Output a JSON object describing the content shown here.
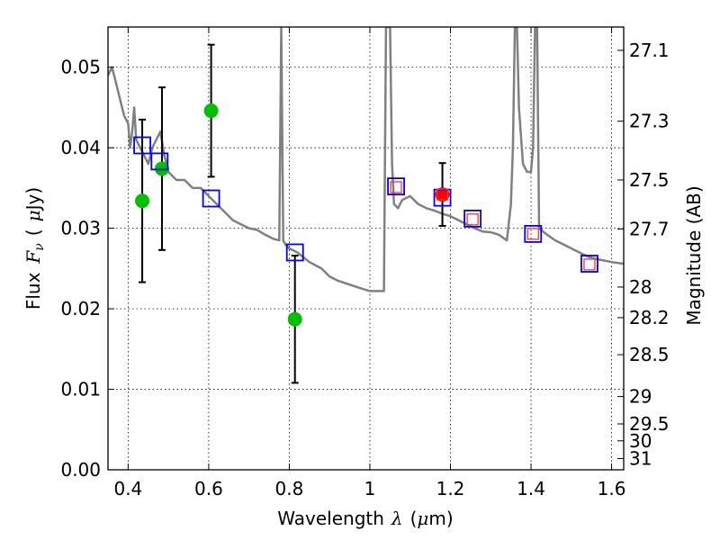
{
  "chart_data": {
    "type": "scatter",
    "xlabel_prefix": "Wavelength",
    "xlabel_symbol": "λ",
    "xlabel_unit_open": "(",
    "xlabel_unit_mu": "μ",
    "xlabel_unit_rest": "m)",
    "ylabel_prefix": "Flux",
    "ylabel_symbol": "F",
    "ylabel_sub": "ν",
    "ylabel_unit_open": "(",
    "ylabel_unit_mu": "μ",
    "ylabel_unit_rest": "Jy)",
    "y2label": "Magnitude (AB)",
    "xlim": [
      0.35,
      1.63
    ],
    "ylim": [
      0.0,
      0.055
    ],
    "grid": true,
    "x_ticks": [
      0.4,
      0.6,
      0.8,
      1.0,
      1.2,
      1.4,
      1.6
    ],
    "x_tick_labels": [
      "0.4",
      "0.6",
      "0.8",
      "1",
      "1.2",
      "1.4",
      "1.6"
    ],
    "y_ticks": [
      0.0,
      0.01,
      0.02,
      0.03,
      0.04,
      0.05
    ],
    "y_tick_labels": [
      "0.00",
      "0.01",
      "0.02",
      "0.03",
      "0.04",
      "0.05"
    ],
    "y2_ticks": [
      {
        "label": "27.1",
        "flux": 0.0521
      },
      {
        "label": "27.3",
        "flux": 0.0433
      },
      {
        "label": "27.5",
        "flux": 0.036
      },
      {
        "label": "27.7",
        "flux": 0.0299
      },
      {
        "label": "28",
        "flux": 0.0227
      },
      {
        "label": "28.2",
        "flux": 0.0189
      },
      {
        "label": "28.5",
        "flux": 0.0143
      },
      {
        "label": "29",
        "flux": 0.0091
      },
      {
        "label": "29.5",
        "flux": 0.0057
      },
      {
        "label": "30",
        "flux": 0.0036
      },
      {
        "label": "31",
        "flux": 0.0014
      }
    ],
    "template_spectrum": {
      "name": "model SED",
      "color": "#808080",
      "x": [
        0.35,
        0.36,
        0.37,
        0.38,
        0.39,
        0.4,
        0.405,
        0.41,
        0.415,
        0.42,
        0.43,
        0.44,
        0.45,
        0.46,
        0.47,
        0.48,
        0.49,
        0.5,
        0.52,
        0.54,
        0.56,
        0.58,
        0.6,
        0.62,
        0.64,
        0.66,
        0.68,
        0.7,
        0.72,
        0.74,
        0.76,
        0.775,
        0.78,
        0.785,
        0.79,
        0.8,
        0.82,
        0.85,
        0.88,
        0.9,
        0.92,
        0.95,
        0.98,
        1.0,
        1.02,
        1.035,
        1.04,
        1.045,
        1.05,
        1.055,
        1.06,
        1.07,
        1.08,
        1.1,
        1.12,
        1.14,
        1.16,
        1.18,
        1.2,
        1.22,
        1.24,
        1.26,
        1.28,
        1.3,
        1.32,
        1.34,
        1.35,
        1.355,
        1.36,
        1.365,
        1.37,
        1.38,
        1.39,
        1.4,
        1.405,
        1.41,
        1.415,
        1.42,
        1.44,
        1.46,
        1.48,
        1.5,
        1.52,
        1.54,
        1.56,
        1.58,
        1.6,
        1.63
      ],
      "y": [
        0.049,
        0.05,
        0.048,
        0.046,
        0.044,
        0.043,
        0.04,
        0.042,
        0.045,
        0.041,
        0.04,
        0.039,
        0.038,
        0.04,
        0.041,
        0.042,
        0.039,
        0.037,
        0.036,
        0.036,
        0.035,
        0.035,
        0.034,
        0.033,
        0.032,
        0.031,
        0.0305,
        0.03,
        0.0298,
        0.0292,
        0.0287,
        0.0285,
        0.055,
        0.0285,
        0.028,
        0.0275,
        0.027,
        0.0258,
        0.025,
        0.024,
        0.0235,
        0.023,
        0.0225,
        0.0222,
        0.0222,
        0.0222,
        0.055,
        0.055,
        0.055,
        0.038,
        0.033,
        0.0325,
        0.0335,
        0.034,
        0.033,
        0.0325,
        0.0322,
        0.0318,
        0.0315,
        0.031,
        0.0305,
        0.03,
        0.0296,
        0.0295,
        0.0292,
        0.0285,
        0.033,
        0.04,
        0.055,
        0.055,
        0.045,
        0.038,
        0.037,
        0.037,
        0.04,
        0.055,
        0.055,
        0.03,
        0.0292,
        0.0285,
        0.028,
        0.0275,
        0.027,
        0.0265,
        0.0262,
        0.026,
        0.0258,
        0.0256
      ]
    },
    "series": [
      {
        "name": "observed (green)",
        "marker": "circle",
        "color": "#00c000",
        "points": [
          {
            "x": 0.435,
            "y": 0.0334,
            "err": 0.0101
          },
          {
            "x": 0.484,
            "y": 0.0374,
            "err": 0.0101
          },
          {
            "x": 0.606,
            "y": 0.0446,
            "err": 0.0082
          },
          {
            "x": 0.814,
            "y": 0.0187,
            "err": 0.0079
          }
        ]
      },
      {
        "name": "observed (red)",
        "marker": "circle",
        "color": "#ff0000",
        "points": [
          {
            "x": 1.18,
            "y": 0.0342,
            "err": 0.0039
          }
        ]
      },
      {
        "name": "model band flux (blue)",
        "marker": "square-open",
        "color": "#0000ff",
        "points": [
          {
            "x": 0.435,
            "y": 0.0403
          },
          {
            "x": 0.478,
            "y": 0.0383
          },
          {
            "x": 0.606,
            "y": 0.0337
          },
          {
            "x": 0.814,
            "y": 0.027
          },
          {
            "x": 1.065,
            "y": 0.0352
          },
          {
            "x": 1.18,
            "y": 0.0338
          },
          {
            "x": 1.255,
            "y": 0.0312
          },
          {
            "x": 1.405,
            "y": 0.0293
          },
          {
            "x": 1.545,
            "y": 0.0256
          }
        ]
      },
      {
        "name": "model band flux (red inner)",
        "marker": "square-open-small",
        "color": "#ff3030",
        "points": [
          {
            "x": 1.065,
            "y": 0.0351
          },
          {
            "x": 1.18,
            "y": 0.0342
          },
          {
            "x": 1.255,
            "y": 0.0311
          },
          {
            "x": 1.405,
            "y": 0.0293
          },
          {
            "x": 1.545,
            "y": 0.0255
          }
        ]
      }
    ]
  }
}
